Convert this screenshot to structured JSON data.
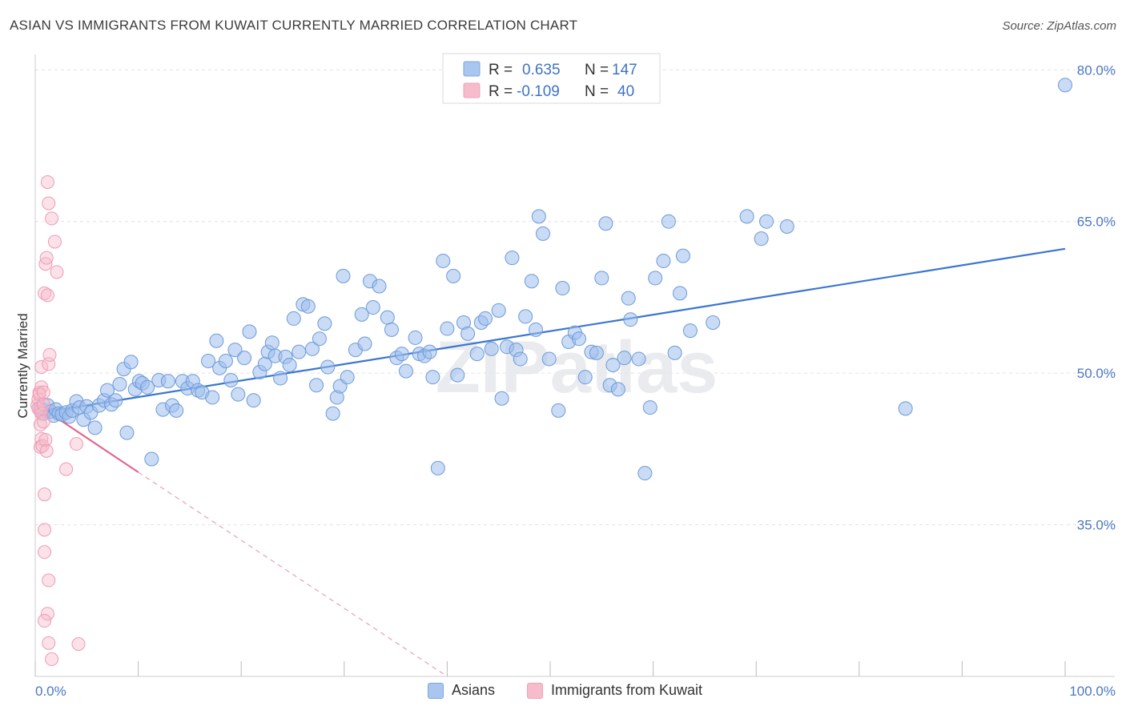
{
  "title": "ASIAN VS IMMIGRANTS FROM KUWAIT CURRENTLY MARRIED CORRELATION CHART",
  "source": "Source: ZipAtlas.com",
  "watermark": "ZIPatlas",
  "legend_top": [
    {
      "r_label": "R =",
      "r_value": "0.635",
      "n_label": "N =",
      "n_value": "147",
      "color": "#7ba7e0"
    },
    {
      "r_label": "R =",
      "r_value": "-0.109",
      "n_label": "N =",
      "n_value": "40",
      "color": "#f0a0b8"
    }
  ],
  "legend_bottom": [
    {
      "label": "Asians",
      "color": "#a9c6ee"
    },
    {
      "label": "Immigrants from Kuwait",
      "color": "#f7bccb"
    }
  ],
  "chart_data": {
    "type": "scatter",
    "ylabel": "Currently Married",
    "xlim": [
      0,
      100
    ],
    "ylim": [
      20,
      82
    ],
    "x_tick_labels": [
      "0.0%",
      "100.0%"
    ],
    "y_ticks": [
      35,
      50,
      65,
      80
    ],
    "y_tick_labels": [
      "35.0%",
      "50.0%",
      "65.0%",
      "80.0%"
    ],
    "grid": true,
    "series": [
      {
        "name": "Asians",
        "color": "#7ba7e0",
        "trend": {
          "x": [
            0,
            100
          ],
          "y": [
            46.0,
            62.3
          ]
        },
        "points": [
          [
            0.5,
            46.5
          ],
          [
            0.8,
            46.0
          ],
          [
            1.0,
            46.3
          ],
          [
            1.2,
            46.8
          ],
          [
            1.5,
            46.2
          ],
          [
            1.8,
            45.8
          ],
          [
            2.0,
            46.4
          ],
          [
            2.3,
            46.0
          ],
          [
            2.6,
            45.9
          ],
          [
            3.0,
            46.1
          ],
          [
            3.3,
            45.7
          ],
          [
            3.6,
            46.3
          ],
          [
            4.0,
            47.2
          ],
          [
            4.3,
            46.6
          ],
          [
            4.7,
            45.4
          ],
          [
            5.0,
            46.7
          ],
          [
            5.4,
            46.1
          ],
          [
            5.8,
            44.6
          ],
          [
            6.2,
            46.8
          ],
          [
            6.7,
            47.3
          ],
          [
            7.0,
            48.3
          ],
          [
            7.4,
            46.9
          ],
          [
            7.8,
            47.3
          ],
          [
            8.2,
            48.9
          ],
          [
            8.6,
            50.4
          ],
          [
            8.9,
            44.1
          ],
          [
            9.3,
            51.1
          ],
          [
            9.7,
            48.4
          ],
          [
            10.1,
            49.2
          ],
          [
            10.4,
            49.0
          ],
          [
            10.9,
            48.6
          ],
          [
            11.3,
            41.5
          ],
          [
            12.0,
            49.3
          ],
          [
            12.4,
            46.4
          ],
          [
            12.9,
            49.2
          ],
          [
            13.3,
            46.8
          ],
          [
            13.7,
            46.3
          ],
          [
            14.3,
            49.2
          ],
          [
            14.8,
            48.5
          ],
          [
            15.3,
            49.2
          ],
          [
            15.8,
            48.3
          ],
          [
            16.2,
            48.1
          ],
          [
            16.8,
            51.2
          ],
          [
            17.2,
            47.6
          ],
          [
            17.6,
            53.2
          ],
          [
            17.9,
            50.5
          ],
          [
            18.5,
            51.2
          ],
          [
            19.0,
            49.3
          ],
          [
            19.4,
            52.3
          ],
          [
            19.7,
            47.9
          ],
          [
            20.3,
            51.5
          ],
          [
            20.8,
            54.1
          ],
          [
            21.2,
            47.3
          ],
          [
            21.8,
            50.1
          ],
          [
            22.3,
            50.9
          ],
          [
            22.6,
            52.1
          ],
          [
            23.0,
            53.0
          ],
          [
            23.3,
            51.7
          ],
          [
            23.8,
            49.5
          ],
          [
            24.3,
            51.6
          ],
          [
            24.7,
            50.8
          ],
          [
            25.1,
            55.4
          ],
          [
            25.6,
            52.1
          ],
          [
            26.0,
            56.8
          ],
          [
            26.5,
            56.6
          ],
          [
            26.9,
            52.4
          ],
          [
            27.3,
            48.8
          ],
          [
            27.6,
            53.4
          ],
          [
            28.1,
            54.9
          ],
          [
            28.4,
            50.6
          ],
          [
            28.9,
            46.0
          ],
          [
            29.3,
            47.6
          ],
          [
            29.6,
            48.7
          ],
          [
            29.9,
            59.6
          ],
          [
            30.3,
            49.6
          ],
          [
            31.1,
            52.3
          ],
          [
            31.7,
            55.8
          ],
          [
            32.0,
            52.9
          ],
          [
            32.5,
            59.1
          ],
          [
            32.8,
            56.5
          ],
          [
            33.4,
            58.6
          ],
          [
            34.2,
            55.5
          ],
          [
            34.6,
            54.3
          ],
          [
            35.1,
            51.5
          ],
          [
            35.6,
            51.9
          ],
          [
            36.0,
            50.2
          ],
          [
            36.9,
            53.5
          ],
          [
            37.3,
            51.9
          ],
          [
            37.8,
            51.7
          ],
          [
            38.3,
            52.1
          ],
          [
            38.6,
            49.6
          ],
          [
            39.1,
            40.6
          ],
          [
            39.6,
            61.1
          ],
          [
            40.0,
            54.4
          ],
          [
            40.6,
            59.6
          ],
          [
            41.0,
            49.8
          ],
          [
            41.6,
            55.0
          ],
          [
            42.0,
            53.9
          ],
          [
            42.9,
            51.9
          ],
          [
            43.3,
            55.0
          ],
          [
            43.7,
            55.4
          ],
          [
            44.3,
            52.4
          ],
          [
            45.0,
            56.2
          ],
          [
            45.3,
            47.5
          ],
          [
            45.8,
            52.6
          ],
          [
            46.3,
            61.4
          ],
          [
            46.7,
            52.3
          ],
          [
            47.1,
            51.4
          ],
          [
            47.6,
            55.6
          ],
          [
            48.2,
            59.1
          ],
          [
            48.6,
            54.3
          ],
          [
            48.9,
            65.5
          ],
          [
            49.3,
            63.8
          ],
          [
            49.9,
            51.4
          ],
          [
            50.8,
            46.3
          ],
          [
            51.2,
            58.4
          ],
          [
            51.8,
            53.1
          ],
          [
            52.4,
            54.0
          ],
          [
            52.8,
            53.4
          ],
          [
            53.4,
            49.6
          ],
          [
            54.0,
            52.1
          ],
          [
            54.5,
            52.0
          ],
          [
            55.0,
            59.4
          ],
          [
            55.4,
            64.8
          ],
          [
            55.8,
            48.8
          ],
          [
            56.1,
            50.8
          ],
          [
            56.6,
            48.4
          ],
          [
            57.2,
            51.5
          ],
          [
            57.6,
            57.4
          ],
          [
            57.8,
            55.3
          ],
          [
            58.6,
            51.4
          ],
          [
            59.2,
            40.1
          ],
          [
            59.7,
            46.6
          ],
          [
            60.2,
            59.4
          ],
          [
            61.0,
            61.1
          ],
          [
            61.5,
            65.0
          ],
          [
            62.1,
            52.0
          ],
          [
            62.6,
            57.9
          ],
          [
            62.9,
            61.6
          ],
          [
            63.6,
            54.2
          ],
          [
            65.8,
            55.0
          ],
          [
            69.1,
            65.5
          ],
          [
            70.5,
            63.3
          ],
          [
            71.0,
            65.0
          ],
          [
            73.0,
            64.5
          ],
          [
            84.5,
            46.5
          ],
          [
            100.0,
            78.5
          ]
        ]
      },
      {
        "name": "Immigrants from Kuwait",
        "color": "#f08aa6",
        "trend": {
          "x": [
            0,
            10
          ],
          "y": [
            47.0,
            40.2
          ]
        },
        "trend_extension": {
          "x": [
            10,
            40
          ],
          "y": [
            40.2,
            20.0
          ]
        },
        "points": [
          [
            0.2,
            46.8
          ],
          [
            0.3,
            47.4
          ],
          [
            0.4,
            48.1
          ],
          [
            0.5,
            46.2
          ],
          [
            0.6,
            48.6
          ],
          [
            0.4,
            47.9
          ],
          [
            0.3,
            46.5
          ],
          [
            0.5,
            44.9
          ],
          [
            0.6,
            43.5
          ],
          [
            0.5,
            42.7
          ],
          [
            0.7,
            42.8
          ],
          [
            0.6,
            50.6
          ],
          [
            0.8,
            48.1
          ],
          [
            1.0,
            43.4
          ],
          [
            1.1,
            42.3
          ],
          [
            1.3,
            50.9
          ],
          [
            1.4,
            51.8
          ],
          [
            0.6,
            46.0
          ],
          [
            0.8,
            45.2
          ],
          [
            0.9,
            57.9
          ],
          [
            1.0,
            60.8
          ],
          [
            1.1,
            61.4
          ],
          [
            1.2,
            57.7
          ],
          [
            1.3,
            66.8
          ],
          [
            1.2,
            68.9
          ],
          [
            1.6,
            65.3
          ],
          [
            1.9,
            63.0
          ],
          [
            2.1,
            60.0
          ],
          [
            3.0,
            40.5
          ],
          [
            4.0,
            43.0
          ],
          [
            0.9,
            38.0
          ],
          [
            0.9,
            34.5
          ],
          [
            0.9,
            32.3
          ],
          [
            1.3,
            29.5
          ],
          [
            1.2,
            26.2
          ],
          [
            0.9,
            25.5
          ],
          [
            1.3,
            23.3
          ],
          [
            1.6,
            21.7
          ],
          [
            4.2,
            23.2
          ],
          [
            0.8,
            46.9
          ]
        ]
      }
    ]
  }
}
